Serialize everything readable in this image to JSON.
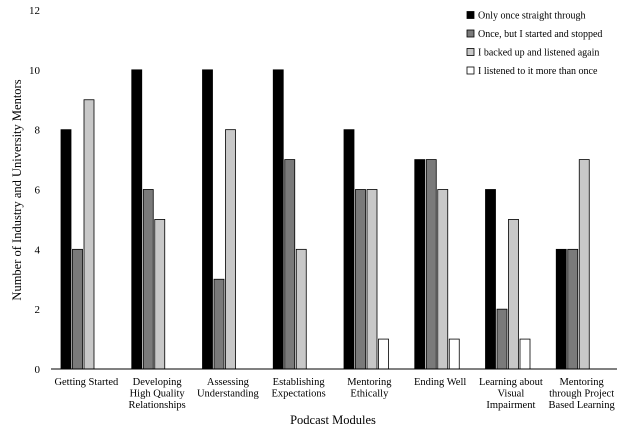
{
  "chart_data": {
    "type": "bar",
    "xlabel": "Podcast Modules",
    "ylabel": "Number of Industry and University Mentors",
    "ylim": [
      0,
      12
    ],
    "yticks": [
      0,
      2,
      4,
      6,
      8,
      10,
      12
    ],
    "grid": false,
    "legend_position": "top-right",
    "categories": [
      [
        "Getting Started"
      ],
      [
        "Developing",
        "High Quality",
        "Relationships"
      ],
      [
        "Assessing",
        "Understanding"
      ],
      [
        "Establishing",
        "Expectations"
      ],
      [
        "Mentoring",
        "Ethically"
      ],
      [
        "Ending Well"
      ],
      [
        "Learning about",
        "Visual",
        "Impairment"
      ],
      [
        "Mentoring",
        "through Project",
        "Based Learning"
      ]
    ],
    "series": [
      {
        "name": "Only once straight through",
        "color": "#000000",
        "values": [
          8,
          10,
          10,
          10,
          8,
          7,
          6,
          4
        ]
      },
      {
        "name": "Once, but I started and stopped",
        "color": "#7a7a7a",
        "values": [
          4,
          6,
          3,
          7,
          6,
          7,
          2,
          4
        ]
      },
      {
        "name": "I backed up and listened again",
        "color": "#c8c8c8",
        "values": [
          9,
          5,
          8,
          4,
          6,
          6,
          5,
          7
        ]
      },
      {
        "name": "I listened to it more than once",
        "color": "#ffffff",
        "values": [
          0,
          0,
          0,
          0,
          1,
          1,
          1,
          0
        ]
      }
    ]
  }
}
